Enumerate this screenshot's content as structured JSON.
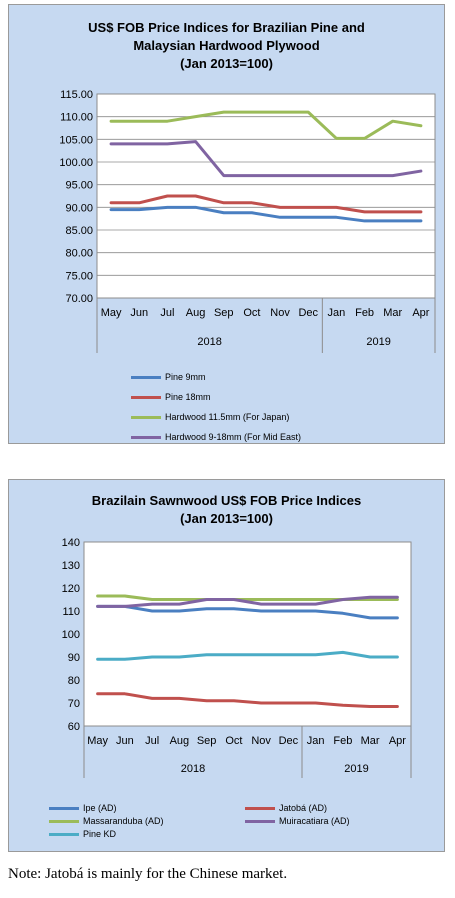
{
  "chart_data": [
    {
      "type": "line",
      "title_line1": "US$ FOB Price Indices for Brazilian Pine and",
      "title_line2": "Malaysian Hardwood Plywood",
      "title_line3": "(Jan 2013=100)",
      "categories": [
        "May",
        "Jun",
        "Jul",
        "Aug",
        "Sep",
        "Oct",
        "Nov",
        "Dec",
        "Jan",
        "Feb",
        "Mar",
        "Apr"
      ],
      "year_groups": [
        {
          "label": "2018",
          "count": 8
        },
        {
          "label": "2019",
          "count": 4
        }
      ],
      "ylim": [
        70,
        115
      ],
      "yticks": [
        "70.00",
        "75.00",
        "80.00",
        "85.00",
        "90.00",
        "95.00",
        "100.00",
        "105.00",
        "110.00",
        "115.00"
      ],
      "grid": true,
      "legend_position": "bottom",
      "series": [
        {
          "name": "Pine 9mm",
          "color": "#4a7fc1",
          "values": [
            89.5,
            89.5,
            90.0,
            90.0,
            88.8,
            88.8,
            87.8,
            87.8,
            87.8,
            87.0,
            87.0,
            87.0
          ]
        },
        {
          "name": "Pine 18mm",
          "color": "#c0504d",
          "values": [
            91.0,
            91.0,
            92.5,
            92.5,
            91.0,
            91.0,
            90.0,
            90.0,
            90.0,
            89.0,
            89.0,
            89.0
          ]
        },
        {
          "name": "Hardwood 11.5mm (For Japan)",
          "color": "#9bbb59",
          "values": [
            109.0,
            109.0,
            109.0,
            110.0,
            111.0,
            111.0,
            111.0,
            111.0,
            105.2,
            105.2,
            109.0,
            108.0
          ]
        },
        {
          "name": "Hardwood 9-18mm (For Mid East)",
          "color": "#8064a2",
          "values": [
            104.0,
            104.0,
            104.0,
            104.5,
            97.0,
            97.0,
            97.0,
            97.0,
            97.0,
            97.0,
            97.0,
            98.0
          ]
        }
      ]
    },
    {
      "type": "line",
      "title_line1": "Brazilain Sawnwood US$ FOB Price Indices",
      "title_line2": "(Jan 2013=100)",
      "categories": [
        "May",
        "Jun",
        "Jul",
        "Aug",
        "Sep",
        "Oct",
        "Nov",
        "Dec",
        "Jan",
        "Feb",
        "Mar",
        "Apr"
      ],
      "year_groups": [
        {
          "label": "2018",
          "count": 8
        },
        {
          "label": "2019",
          "count": 4
        }
      ],
      "ylim": [
        60,
        140
      ],
      "yticks": [
        "60",
        "70",
        "80",
        "90",
        "100",
        "110",
        "120",
        "130",
        "140"
      ],
      "grid": false,
      "legend_position": "bottom",
      "series": [
        {
          "name": "Ipe (AD)",
          "color": "#4a7fc1",
          "values": [
            112,
            112,
            110,
            110,
            111,
            111,
            110,
            110,
            110,
            109,
            107,
            107
          ]
        },
        {
          "name": "Jatobá (AD)",
          "color": "#c0504d",
          "values": [
            74,
            74,
            72,
            72,
            71,
            71,
            70,
            70,
            70,
            69,
            68.5,
            68.5
          ]
        },
        {
          "name": "Massaranduba (AD)",
          "color": "#9bbb59",
          "values": [
            116.5,
            116.5,
            115,
            115,
            115,
            115,
            115,
            115,
            115,
            115,
            115,
            115
          ]
        },
        {
          "name": "Muiracatiara (AD)",
          "color": "#8064a2",
          "values": [
            112,
            112,
            113,
            113,
            115,
            115,
            113,
            113,
            113,
            115,
            116,
            116
          ]
        },
        {
          "name": "Pine KD",
          "color": "#4bacc6",
          "values": [
            89,
            89,
            90,
            90,
            91,
            91,
            91,
            91,
            91,
            92,
            90,
            90
          ]
        }
      ]
    }
  ],
  "note": "Note: Jatobá is mainly for the Chinese market."
}
